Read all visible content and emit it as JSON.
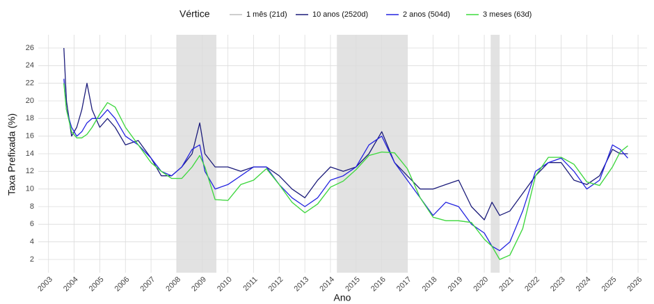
{
  "chart_data": {
    "type": "line",
    "x_label": "Ano",
    "y_label": "Taxa Prefixada (%)",
    "legend_title": "Vértice",
    "legend_position": "top",
    "grid": true,
    "xlim": [
      2002.6,
      2026.35
    ],
    "ylim": [
      0.5,
      27.5
    ],
    "xticks": [
      2003,
      2004,
      2005,
      2006,
      2007,
      2008,
      2009,
      2010,
      2011,
      2012,
      2013,
      2014,
      2015,
      2016,
      2017,
      2018,
      2019,
      2020,
      2021,
      2022,
      2023,
      2024,
      2025,
      2026
    ],
    "yticks": [
      2,
      4,
      6,
      8,
      10,
      12,
      14,
      16,
      18,
      20,
      22,
      24,
      26
    ],
    "shaded_periods": [
      [
        2008.0,
        2009.55
      ],
      [
        2014.25,
        2017.0
      ],
      [
        2020.25,
        2020.6
      ]
    ],
    "shade_color": "#e2e2e2",
    "x": [
      2003.6,
      2003.7,
      2003.9,
      2004.1,
      2004.3,
      2004.5,
      2004.7,
      2005.0,
      2005.3,
      2005.6,
      2006.0,
      2006.5,
      2007.0,
      2007.4,
      2007.8,
      2008.2,
      2008.6,
      2008.9,
      2009.1,
      2009.5,
      2010.0,
      2010.5,
      2011.0,
      2011.5,
      2012.0,
      2012.5,
      2013.0,
      2013.5,
      2014.0,
      2014.5,
      2015.0,
      2015.5,
      2016.0,
      2016.5,
      2017.0,
      2017.5,
      2018.0,
      2018.5,
      2019.0,
      2019.5,
      2020.0,
      2020.3,
      2020.6,
      2021.0,
      2021.5,
      2022.0,
      2022.5,
      2023.0,
      2023.5,
      2024.0,
      2024.5,
      2025.0,
      2025.3,
      2025.6
    ],
    "series": [
      {
        "name": "1 mês (21d)",
        "color": "#bdbdbd",
        "values": [
          22,
          19,
          16.5,
          15.8,
          15.8,
          16.2,
          17,
          18.5,
          19.8,
          19.3,
          17,
          15,
          13,
          12,
          11.2,
          11.2,
          12.5,
          13.8,
          12.5,
          8.8,
          8.7,
          10.5,
          11,
          12.3,
          10.5,
          8.5,
          7.3,
          8.3,
          10.2,
          10.9,
          12.2,
          13.8,
          14.2,
          14.1,
          12.3,
          9,
          6.8,
          6.4,
          6.4,
          6.2,
          4.3,
          3.5,
          2,
          2.5,
          5.5,
          11.5,
          13.6,
          13.6,
          12.8,
          10.8,
          10.4,
          12.5,
          14.2,
          14.9
        ]
      },
      {
        "name": "10 anos (2520d)",
        "color": "#1b1b7a",
        "values": [
          26,
          20,
          16,
          17,
          19,
          22,
          19,
          17,
          18,
          17,
          15,
          15.5,
          13.5,
          11.5,
          11.5,
          12.5,
          14,
          17.5,
          14,
          12.5,
          12.5,
          12,
          12.5,
          12.5,
          11.5,
          10,
          9,
          11,
          12.5,
          12,
          12.5,
          14,
          16.5,
          13,
          11.5,
          10,
          10,
          10.5,
          11,
          8,
          6.5,
          8.5,
          7,
          7.5,
          9.5,
          11.5,
          13,
          13,
          11,
          10.5,
          11.5,
          14.5,
          14,
          14
        ]
      },
      {
        "name": "2 anos (504d)",
        "color": "#2323e0",
        "values": [
          22.5,
          19,
          17,
          16,
          16.5,
          17.5,
          18,
          18,
          19,
          18,
          16,
          15,
          13.5,
          12,
          11.5,
          12.5,
          14.5,
          15,
          12,
          10,
          10.5,
          11.5,
          12.5,
          12.5,
          10.5,
          9,
          8,
          9,
          11,
          11.5,
          12.5,
          15,
          16,
          13,
          11,
          9,
          7,
          8.5,
          8,
          6,
          5,
          3.5,
          3,
          4,
          7.5,
          12,
          13,
          13.5,
          12,
          10,
          11,
          15,
          14.5,
          13.5
        ]
      },
      {
        "name": "3 meses (63d)",
        "color": "#3ddc3d",
        "values": [
          22,
          19,
          16.5,
          15.8,
          15.8,
          16.2,
          17,
          18.5,
          19.8,
          19.3,
          17,
          15,
          13,
          12,
          11.2,
          11.2,
          12.5,
          13.8,
          12.5,
          8.8,
          8.7,
          10.5,
          11,
          12.3,
          10.5,
          8.5,
          7.3,
          8.3,
          10.2,
          10.9,
          12.2,
          13.8,
          14.2,
          14.1,
          12.3,
          9,
          6.8,
          6.4,
          6.4,
          6.2,
          4.3,
          3.5,
          2,
          2.5,
          5.5,
          11.5,
          13.6,
          13.6,
          12.8,
          10.8,
          10.4,
          12.5,
          14.2,
          14.9
        ]
      }
    ]
  }
}
